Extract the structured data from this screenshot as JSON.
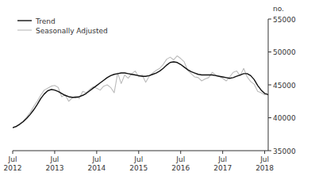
{
  "chart_data": {
    "type": "line",
    "y_label": "no.",
    "categories": [
      "Jul\n2012",
      null,
      null,
      null,
      null,
      null,
      null,
      null,
      null,
      null,
      null,
      null,
      "Jul\n2013",
      null,
      null,
      null,
      null,
      null,
      null,
      null,
      null,
      null,
      null,
      null,
      "Jul\n2014",
      null,
      null,
      null,
      null,
      null,
      null,
      null,
      null,
      null,
      null,
      null,
      "Jul\n2015",
      null,
      null,
      null,
      null,
      null,
      null,
      null,
      null,
      null,
      null,
      null,
      "Jul\n2016",
      null,
      null,
      null,
      null,
      null,
      null,
      null,
      null,
      null,
      null,
      null,
      "Jul\n2017",
      null,
      null,
      null,
      null,
      null,
      null,
      null,
      null,
      null,
      null,
      null,
      "Jul\n2018",
      null
    ],
    "series": [
      {
        "name": "Trend",
        "color": "#111111",
        "values": [
          38500,
          38700,
          39000,
          39400,
          39900,
          40500,
          41200,
          42000,
          42900,
          43600,
          44100,
          44300,
          44200,
          44000,
          43700,
          43400,
          43200,
          43100,
          43100,
          43200,
          43400,
          43700,
          44100,
          44500,
          44900,
          45300,
          45700,
          46100,
          46400,
          46600,
          46700,
          46800,
          46800,
          46700,
          46600,
          46500,
          46400,
          46300,
          46300,
          46400,
          46600,
          46800,
          47100,
          47500,
          48000,
          48400,
          48500,
          48400,
          48100,
          47700,
          47300,
          47000,
          46800,
          46600,
          46500,
          46500,
          46500,
          46500,
          46400,
          46300,
          46200,
          46100,
          46000,
          46100,
          46300,
          46500,
          46700,
          46700,
          46400,
          45800,
          44900,
          44200,
          43700,
          43500
        ]
      },
      {
        "name": "Seasonally Adjusted",
        "color": "#bbbbbb",
        "values": [
          38400,
          38600,
          39100,
          39500,
          40100,
          40800,
          41700,
          42500,
          43400,
          44200,
          44500,
          44800,
          44900,
          44600,
          43200,
          43500,
          42500,
          43000,
          43300,
          42900,
          44000,
          43800,
          44300,
          44700,
          44500,
          44200,
          44800,
          45000,
          44600,
          43800,
          46800,
          45200,
          46500,
          46000,
          46700,
          47100,
          46200,
          46500,
          45400,
          46300,
          46800,
          47200,
          47500,
          48100,
          48900,
          49200,
          48800,
          49400,
          49000,
          48500,
          47200,
          46700,
          46200,
          46100,
          45600,
          45900,
          46100,
          46900,
          46500,
          46300,
          46000,
          45600,
          46200,
          46900,
          47100,
          46400,
          47500,
          46200,
          45500,
          45100,
          44000,
          43800,
          43500,
          43800
        ]
      }
    ],
    "ylim": [
      35000,
      55000
    ],
    "yticks": [
      35000,
      40000,
      45000,
      50000,
      55000
    ],
    "grid": false,
    "legend": "upper left"
  }
}
